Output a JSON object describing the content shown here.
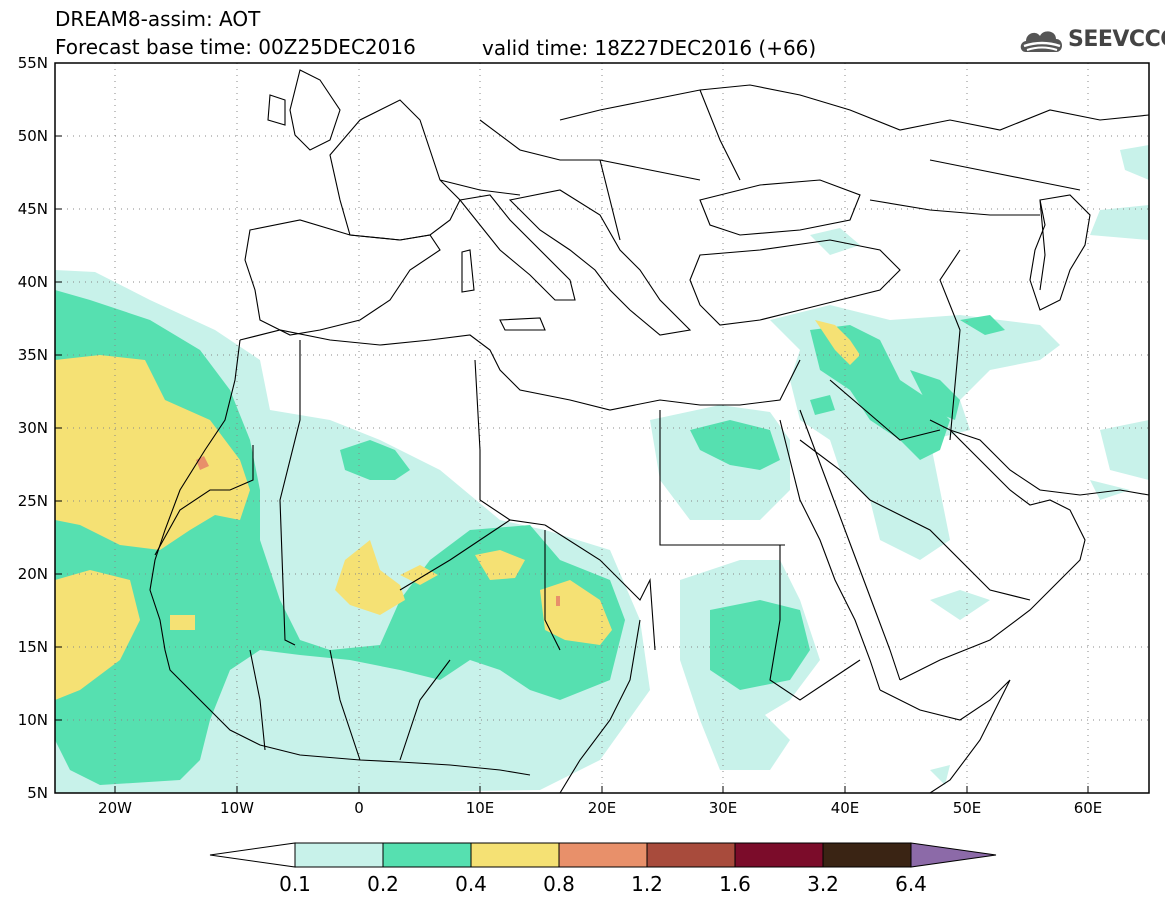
{
  "header": {
    "title_line1": "DREAM8-assim: AOT",
    "title_line2": "Forecast base time: 00Z25DEC2016",
    "valid_time": "valid time: 18Z27DEC2016 (+66)",
    "logo_text": "SEEVCCC"
  },
  "map": {
    "lon_range": [
      -25,
      65
    ],
    "lat_range": [
      5,
      55
    ],
    "lat_labels": [
      "55N",
      "50N",
      "45N",
      "40N",
      "35N",
      "30N",
      "25N",
      "20N",
      "15N",
      "10N",
      "5N"
    ],
    "lon_labels": [
      "20W",
      "10W",
      "0",
      "10E",
      "20E",
      "30E",
      "40E",
      "50E",
      "60E"
    ],
    "grid": "dotted"
  },
  "colorbar": {
    "labels": [
      "0.1",
      "0.2",
      "0.4",
      "0.8",
      "1.2",
      "1.6",
      "3.2",
      "6.4"
    ],
    "colors": [
      "#c8f2ea",
      "#56e0b0",
      "#f5e174",
      "#e8906a",
      "#a84b3c",
      "#7b0c2a",
      "#3a2414",
      "#8c6aa8"
    ]
  }
}
